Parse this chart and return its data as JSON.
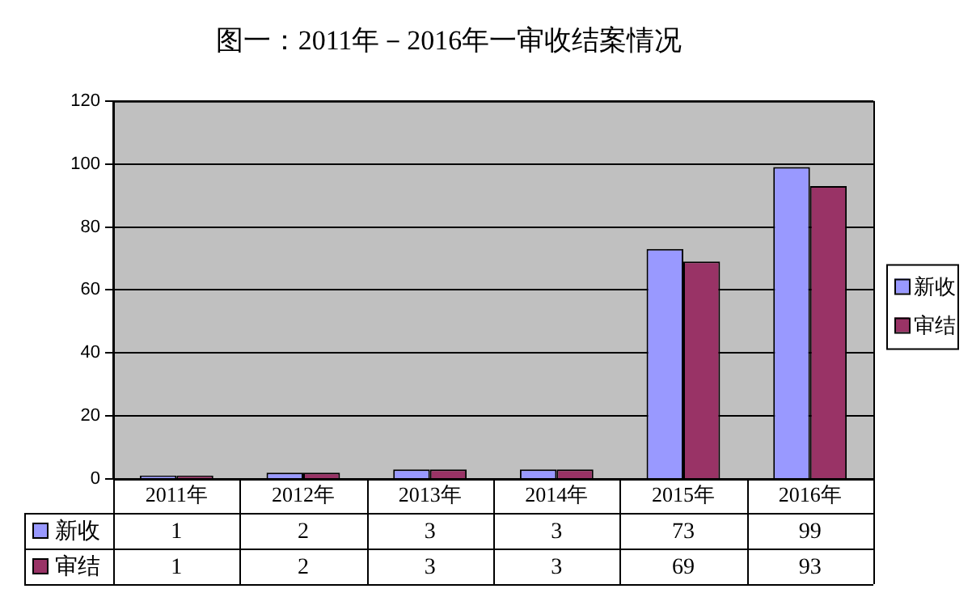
{
  "chart_data": {
    "type": "bar",
    "title": "图一：2011年－2016年一审收结案情况",
    "categories": [
      "2011年",
      "2012年",
      "2013年",
      "2014年",
      "2015年",
      "2016年"
    ],
    "series": [
      {
        "name": "新收",
        "color": "#9999ff",
        "values": [
          1,
          2,
          3,
          3,
          73,
          99
        ]
      },
      {
        "name": "审结",
        "color": "#993366",
        "values": [
          1,
          2,
          3,
          3,
          69,
          93
        ]
      }
    ],
    "ylim": [
      0,
      120
    ],
    "yticks": [
      0,
      20,
      40,
      60,
      80,
      100,
      120
    ],
    "grid": "y",
    "legend": "right",
    "data_labels": true
  }
}
